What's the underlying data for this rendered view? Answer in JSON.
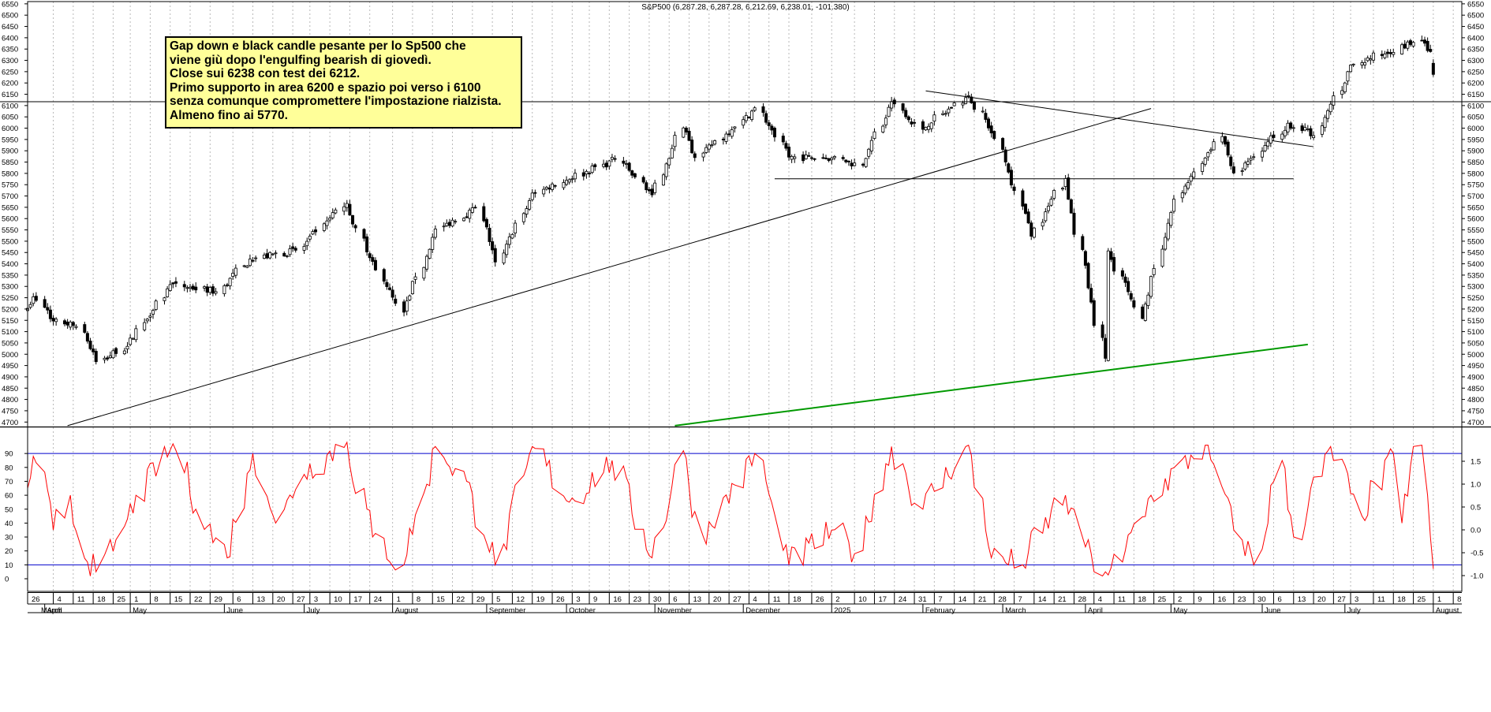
{
  "chart_data": [
    {
      "type": "candlestick",
      "title": "S&P500 (6,287.28, 6,287.28, 6,212.69, 6,238.01, -101.380)",
      "ylim": [
        4680,
        6560
      ],
      "ytick_step": 50,
      "grid": "vertical dotted",
      "price_axis": "left and right",
      "date_range": [
        "2024-03-26",
        "2025-08-11"
      ],
      "support_line": 6130,
      "lows": [
        "2024-04-19: 4953",
        "2024-08-05: 5119",
        "2025-04-07: 4835"
      ],
      "highs": [
        "2024-07-16: 5669",
        "2025-02-19: 6147",
        "2025-07-28: 6427"
      ],
      "last_close": 6238,
      "close_path": [
        {
          "d": "2024-03-26",
          "c": 5203
        },
        {
          "d": "2024-03-28",
          "c": 5254
        },
        {
          "d": "2024-04-04",
          "c": 5147
        },
        {
          "d": "2024-04-12",
          "c": 5123
        },
        {
          "d": "2024-04-19",
          "c": 4967
        },
        {
          "d": "2024-04-30",
          "c": 5035
        },
        {
          "d": "2024-05-15",
          "c": 5308
        },
        {
          "d": "2024-05-31",
          "c": 5277
        },
        {
          "d": "2024-06-12",
          "c": 5421
        },
        {
          "d": "2024-06-28",
          "c": 5460
        },
        {
          "d": "2024-07-16",
          "c": 5667
        },
        {
          "d": "2024-07-24",
          "c": 5427
        },
        {
          "d": "2024-08-05",
          "c": 5186
        },
        {
          "d": "2024-08-16",
          "c": 5554
        },
        {
          "d": "2024-08-30",
          "c": 5648
        },
        {
          "d": "2024-09-06",
          "c": 5408
        },
        {
          "d": "2024-09-19",
          "c": 5713
        },
        {
          "d": "2024-10-18",
          "c": 5864
        },
        {
          "d": "2024-10-31",
          "c": 5705
        },
        {
          "d": "2024-11-11",
          "c": 6001
        },
        {
          "d": "2024-11-15",
          "c": 5870
        },
        {
          "d": "2024-12-06",
          "c": 6090
        },
        {
          "d": "2024-12-18",
          "c": 5872
        },
        {
          "d": "2025-01-02",
          "c": 5868
        },
        {
          "d": "2025-01-13",
          "c": 5836
        },
        {
          "d": "2025-01-23",
          "c": 6118
        },
        {
          "d": "2025-02-03",
          "c": 5995
        },
        {
          "d": "2025-02-19",
          "c": 6144
        },
        {
          "d": "2025-02-28",
          "c": 5954
        },
        {
          "d": "2025-03-13",
          "c": 5522
        },
        {
          "d": "2025-03-25",
          "c": 5777
        },
        {
          "d": "2025-04-08",
          "c": 4982
        },
        {
          "d": "2025-04-09",
          "c": 5457
        },
        {
          "d": "2025-04-21",
          "c": 5158
        },
        {
          "d": "2025-05-02",
          "c": 5686
        },
        {
          "d": "2025-05-12",
          "c": 5844
        },
        {
          "d": "2025-05-19",
          "c": 5963
        },
        {
          "d": "2025-05-23",
          "c": 5802
        },
        {
          "d": "2025-06-11",
          "c": 6022
        },
        {
          "d": "2025-06-20",
          "c": 5967
        },
        {
          "d": "2025-07-03",
          "c": 6279
        },
        {
          "d": "2025-07-28",
          "c": 6389
        },
        {
          "d": "2025-07-31",
          "c": 6339
        },
        {
          "d": "2025-08-01",
          "c": 6238
        }
      ],
      "trendlines": [
        {
          "name": "rising support",
          "color": "#000000",
          "from": {
            "d": "2024-04-09",
            "v": 4684
          },
          "to": {
            "d": "2025-04-24",
            "v": 6087
          }
        },
        {
          "name": "horizontal support",
          "color": "#000000",
          "from": {
            "d": "2024-12-13",
            "v": 5776
          },
          "to": {
            "d": "2025-06-13",
            "v": 5776
          }
        },
        {
          "name": "falling resistance",
          "color": "#000000",
          "from": {
            "d": "2025-02-04",
            "v": 6165
          },
          "to": {
            "d": "2025-06-20",
            "v": 5918
          }
        },
        {
          "name": "long-term support",
          "color": "#009900",
          "from": {
            "d": "2024-11-08",
            "v": 4684
          },
          "to": {
            "d": "2025-06-18",
            "v": 5043
          }
        }
      ],
      "annotation": [
        "Gap down e black candle pesante per lo Sp500 che",
        "viene giù dopo l'engulfing bearish di giovedì.",
        "Close sui 6238 con test dei 6212.",
        "Primo supporto in area 6200 e spazio poi verso i 6100",
        "senza comunque compromettere l'impostazione rialzista.",
        "Almeno fino ai 5770."
      ]
    },
    {
      "type": "line",
      "name": "oscillator",
      "left_axis": {
        "min": 0,
        "max": 100,
        "ticks": [
          0,
          10,
          20,
          30,
          40,
          50,
          60,
          70,
          80,
          90
        ]
      },
      "right_axis": {
        "ticks": [
          "-1.0",
          "-0.5",
          "0.0",
          "0.5",
          "1.0",
          "1.5"
        ]
      },
      "bands": [
        10,
        90
      ],
      "series_color": "#ff0000",
      "band_color": "#0000cc",
      "anchors": [
        {
          "d": "2024-03-26",
          "v": 65
        },
        {
          "d": "2024-03-28",
          "v": 88
        },
        {
          "d": "2024-04-04",
          "v": 35
        },
        {
          "d": "2024-04-10",
          "v": 60
        },
        {
          "d": "2024-04-16",
          "v": 12
        },
        {
          "d": "2024-04-19",
          "v": 5
        },
        {
          "d": "2024-04-26",
          "v": 28
        },
        {
          "d": "2024-05-03",
          "v": 60
        },
        {
          "d": "2024-05-16",
          "v": 97
        },
        {
          "d": "2024-05-24",
          "v": 50
        },
        {
          "d": "2024-06-04",
          "v": 15
        },
        {
          "d": "2024-06-13",
          "v": 90
        },
        {
          "d": "2024-06-21",
          "v": 40
        },
        {
          "d": "2024-07-01",
          "v": 75
        },
        {
          "d": "2024-07-16",
          "v": 98
        },
        {
          "d": "2024-07-25",
          "v": 30
        },
        {
          "d": "2024-08-05",
          "v": 10
        },
        {
          "d": "2024-08-16",
          "v": 95
        },
        {
          "d": "2024-08-27",
          "v": 70
        },
        {
          "d": "2024-09-06",
          "v": 10
        },
        {
          "d": "2024-09-19",
          "v": 95
        },
        {
          "d": "2024-10-02",
          "v": 55
        },
        {
          "d": "2024-10-17",
          "v": 85
        },
        {
          "d": "2024-10-31",
          "v": 15
        },
        {
          "d": "2024-11-11",
          "v": 92
        },
        {
          "d": "2024-11-18",
          "v": 30
        },
        {
          "d": "2024-12-06",
          "v": 90
        },
        {
          "d": "2024-12-18",
          "v": 10
        },
        {
          "d": "2025-01-02",
          "v": 35
        },
        {
          "d": "2025-01-10",
          "v": 18
        },
        {
          "d": "2025-01-23",
          "v": 95
        },
        {
          "d": "2025-02-03",
          "v": 50
        },
        {
          "d": "2025-02-19",
          "v": 96
        },
        {
          "d": "2025-02-27",
          "v": 15
        },
        {
          "d": "2025-03-10",
          "v": 10
        },
        {
          "d": "2025-03-25",
          "v": 60
        },
        {
          "d": "2025-04-04",
          "v": 5
        },
        {
          "d": "2025-04-08",
          "v": 5
        },
        {
          "d": "2025-04-14",
          "v": 12
        },
        {
          "d": "2025-04-24",
          "v": 60
        },
        {
          "d": "2025-05-13",
          "v": 96
        },
        {
          "d": "2025-05-23",
          "v": 35
        },
        {
          "d": "2025-05-30",
          "v": 10
        },
        {
          "d": "2025-06-09",
          "v": 85
        },
        {
          "d": "2025-06-13",
          "v": 30
        },
        {
          "d": "2025-06-26",
          "v": 95
        },
        {
          "d": "2025-07-07",
          "v": 45
        },
        {
          "d": "2025-07-18",
          "v": 90
        },
        {
          "d": "2025-07-21",
          "v": 40
        },
        {
          "d": "2025-07-25",
          "v": 95
        },
        {
          "d": "2025-07-28",
          "v": 96
        },
        {
          "d": "2025-07-31",
          "v": 30
        },
        {
          "d": "2025-08-01",
          "v": 7
        }
      ]
    }
  ],
  "x_axis": {
    "day_ticks": [
      {
        "d": "2024-03-26",
        "label": "26"
      },
      {
        "d": "2024-04-04",
        "label": "4"
      },
      {
        "d": "2024-04-11",
        "label": "11"
      },
      {
        "d": "2024-04-18",
        "label": "18"
      },
      {
        "d": "2024-04-25",
        "label": "25"
      },
      {
        "d": "2024-05-01",
        "label": "1"
      },
      {
        "d": "2024-05-08",
        "label": "8"
      },
      {
        "d": "2024-05-15",
        "label": "15"
      },
      {
        "d": "2024-05-22",
        "label": "22"
      },
      {
        "d": "2024-05-29",
        "label": "29"
      },
      {
        "d": "2024-06-06",
        "label": "6"
      },
      {
        "d": "2024-06-13",
        "label": "13"
      },
      {
        "d": "2024-06-20",
        "label": "20"
      },
      {
        "d": "2024-06-27",
        "label": "27"
      },
      {
        "d": "2024-07-03",
        "label": "3"
      },
      {
        "d": "2024-07-10",
        "label": "10"
      },
      {
        "d": "2024-07-17",
        "label": "17"
      },
      {
        "d": "2024-07-24",
        "label": "24"
      },
      {
        "d": "2024-08-01",
        "label": "1"
      },
      {
        "d": "2024-08-08",
        "label": "8"
      },
      {
        "d": "2024-08-15",
        "label": "15"
      },
      {
        "d": "2024-08-22",
        "label": "22"
      },
      {
        "d": "2024-08-29",
        "label": "29"
      },
      {
        "d": "2024-09-05",
        "label": "5"
      },
      {
        "d": "2024-09-12",
        "label": "12"
      },
      {
        "d": "2024-09-19",
        "label": "19"
      },
      {
        "d": "2024-09-26",
        "label": "26"
      },
      {
        "d": "2024-10-03",
        "label": "3"
      },
      {
        "d": "2024-10-09",
        "label": "9"
      },
      {
        "d": "2024-10-16",
        "label": "16"
      },
      {
        "d": "2024-10-23",
        "label": "23"
      },
      {
        "d": "2024-10-30",
        "label": "30"
      },
      {
        "d": "2024-11-06",
        "label": "6"
      },
      {
        "d": "2024-11-13",
        "label": "13"
      },
      {
        "d": "2024-11-20",
        "label": "20"
      },
      {
        "d": "2024-11-27",
        "label": "27"
      },
      {
        "d": "2024-12-04",
        "label": "4"
      },
      {
        "d": "2024-12-11",
        "label": "11"
      },
      {
        "d": "2024-12-18",
        "label": "18"
      },
      {
        "d": "2024-12-26",
        "label": "26"
      },
      {
        "d": "2025-01-02",
        "label": "2"
      },
      {
        "d": "2025-01-10",
        "label": "10"
      },
      {
        "d": "2025-01-17",
        "label": "17"
      },
      {
        "d": "2025-01-24",
        "label": "24"
      },
      {
        "d": "2025-01-31",
        "label": "31"
      },
      {
        "d": "2025-02-07",
        "label": "7"
      },
      {
        "d": "2025-02-14",
        "label": "14"
      },
      {
        "d": "2025-02-21",
        "label": "21"
      },
      {
        "d": "2025-02-28",
        "label": "28"
      },
      {
        "d": "2025-03-07",
        "label": "7"
      },
      {
        "d": "2025-03-14",
        "label": "14"
      },
      {
        "d": "2025-03-21",
        "label": "21"
      },
      {
        "d": "2025-03-28",
        "label": "28"
      },
      {
        "d": "2025-04-04",
        "label": "4"
      },
      {
        "d": "2025-04-11",
        "label": "11"
      },
      {
        "d": "2025-04-18",
        "label": "18"
      },
      {
        "d": "2025-04-25",
        "label": "25"
      },
      {
        "d": "2025-05-02",
        "label": "2"
      },
      {
        "d": "2025-05-09",
        "label": "9"
      },
      {
        "d": "2025-05-16",
        "label": "16"
      },
      {
        "d": "2025-05-23",
        "label": "23"
      },
      {
        "d": "2025-05-30",
        "label": "30"
      },
      {
        "d": "2025-06-06",
        "label": "6"
      },
      {
        "d": "2025-06-13",
        "label": "13"
      },
      {
        "d": "2025-06-20",
        "label": "20"
      },
      {
        "d": "2025-06-27",
        "label": "27"
      },
      {
        "d": "2025-07-03",
        "label": "3"
      },
      {
        "d": "2025-07-11",
        "label": "11"
      },
      {
        "d": "2025-07-18",
        "label": "18"
      },
      {
        "d": "2025-07-25",
        "label": "25"
      },
      {
        "d": "2025-08-01",
        "label": "1"
      },
      {
        "d": "2025-08-08",
        "label": "8"
      }
    ],
    "month_labels": [
      {
        "d": "2024-04-01",
        "label": "April"
      },
      {
        "d": "2024-05-01",
        "label": "May"
      },
      {
        "d": "2024-06-03",
        "label": "June"
      },
      {
        "d": "2024-07-01",
        "label": "July"
      },
      {
        "d": "2024-08-01",
        "label": "August"
      },
      {
        "d": "2024-09-03",
        "label": "September"
      },
      {
        "d": "2024-10-01",
        "label": "October"
      },
      {
        "d": "2024-11-01",
        "label": "November"
      },
      {
        "d": "2024-12-02",
        "label": "December"
      },
      {
        "d": "2025-01-02",
        "label": "2025"
      },
      {
        "d": "2025-02-03",
        "label": "February"
      },
      {
        "d": "2025-03-03",
        "label": "March"
      },
      {
        "d": "2025-04-01",
        "label": "April"
      },
      {
        "d": "2025-05-01",
        "label": "May"
      },
      {
        "d": "2025-06-02",
        "label": "June"
      },
      {
        "d": "2025-07-01",
        "label": "July"
      },
      {
        "d": "2025-08-01",
        "label": "August"
      }
    ]
  }
}
